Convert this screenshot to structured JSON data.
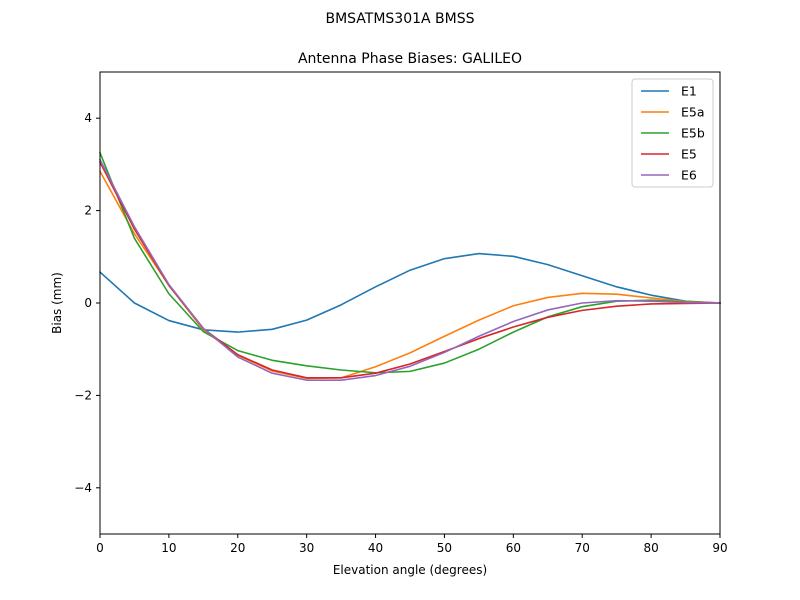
{
  "chart_data": {
    "type": "line",
    "suptitle": "BMSATMS301A     BMSS",
    "title": "Antenna Phase Biases: GALILEO",
    "xlabel": "Elevation angle (degrees)",
    "ylabel": "Bias (mm)",
    "xlim": [
      0,
      90
    ],
    "ylim": [
      -5,
      5
    ],
    "xticks": [
      0,
      10,
      20,
      30,
      40,
      50,
      60,
      70,
      80,
      90
    ],
    "yticks": [
      -4,
      -2,
      0,
      2,
      4
    ],
    "xtick_labels": [
      "0",
      "10",
      "20",
      "30",
      "40",
      "50",
      "60",
      "70",
      "80",
      "90"
    ],
    "ytick_labels": [
      "−4",
      "−2",
      "0",
      "2",
      "4"
    ],
    "legend_position": "top-right",
    "x": [
      0,
      5,
      10,
      15,
      20,
      25,
      30,
      35,
      40,
      45,
      50,
      55,
      60,
      65,
      70,
      75,
      80,
      85,
      90
    ],
    "series": [
      {
        "name": "E1",
        "color": "#1f77b4",
        "values": [
          0.67,
          0.0,
          -0.38,
          -0.58,
          -0.63,
          -0.57,
          -0.37,
          -0.04,
          0.35,
          0.71,
          0.96,
          1.07,
          1.01,
          0.83,
          0.59,
          0.35,
          0.17,
          0.04,
          0.0
        ]
      },
      {
        "name": "E5a",
        "color": "#ff7f0e",
        "values": [
          2.85,
          1.5,
          0.38,
          -0.58,
          -1.13,
          -1.47,
          -1.63,
          -1.62,
          -1.38,
          -1.08,
          -0.72,
          -0.37,
          -0.06,
          0.12,
          0.21,
          0.19,
          0.11,
          0.03,
          0.0
        ]
      },
      {
        "name": "E5b",
        "color": "#2ca02c",
        "values": [
          3.25,
          1.4,
          0.2,
          -0.62,
          -1.03,
          -1.24,
          -1.36,
          -1.45,
          -1.51,
          -1.48,
          -1.3,
          -1.0,
          -0.63,
          -0.3,
          -0.08,
          0.04,
          0.06,
          0.02,
          0.0
        ]
      },
      {
        "name": "E5",
        "color": "#d62728",
        "values": [
          3.05,
          1.6,
          0.38,
          -0.55,
          -1.12,
          -1.45,
          -1.62,
          -1.62,
          -1.52,
          -1.32,
          -1.05,
          -0.77,
          -0.52,
          -0.31,
          -0.16,
          -0.07,
          -0.02,
          -0.01,
          0.0
        ]
      },
      {
        "name": "E6",
        "color": "#9467bd",
        "values": [
          3.1,
          1.65,
          0.4,
          -0.55,
          -1.17,
          -1.52,
          -1.67,
          -1.67,
          -1.57,
          -1.37,
          -1.07,
          -0.72,
          -0.4,
          -0.15,
          0.0,
          0.05,
          0.04,
          0.01,
          0.0
        ]
      }
    ]
  }
}
